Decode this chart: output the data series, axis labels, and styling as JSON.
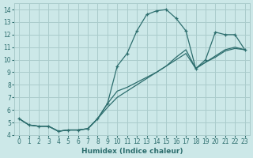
{
  "xlabel": "Humidex (Indice chaleur)",
  "bg_color": "#cce8e8",
  "grid_color": "#aacccc",
  "line_color": "#2d6e6e",
  "xlim": [
    -0.5,
    23.5
  ],
  "ylim": [
    4,
    14.5
  ],
  "line1_x": [
    0,
    1,
    2,
    3,
    4,
    5,
    6,
    7,
    8,
    9,
    10,
    11,
    12,
    13,
    14,
    15,
    16,
    17,
    18,
    19,
    20,
    21,
    22,
    23
  ],
  "line1_y": [
    5.3,
    4.8,
    4.7,
    4.7,
    4.3,
    4.4,
    4.4,
    4.5,
    5.3,
    6.5,
    9.5,
    10.5,
    12.3,
    13.6,
    13.9,
    14.0,
    13.3,
    12.3,
    9.3,
    10.0,
    12.2,
    12.0,
    12.0,
    10.8
  ],
  "line2_x": [
    0,
    1,
    2,
    3,
    4,
    5,
    6,
    7,
    8,
    9,
    10,
    11,
    12,
    13,
    14,
    15,
    16,
    17,
    18,
    19,
    20,
    21,
    22,
    23
  ],
  "line2_y": [
    5.3,
    4.8,
    4.7,
    4.7,
    4.3,
    4.4,
    4.4,
    4.5,
    5.3,
    6.5,
    7.5,
    7.8,
    8.2,
    8.6,
    9.0,
    9.5,
    10.0,
    10.5,
    9.3,
    9.8,
    10.2,
    10.7,
    10.9,
    10.8
  ],
  "line3_x": [
    0,
    1,
    2,
    3,
    4,
    5,
    6,
    7,
    8,
    9,
    10,
    11,
    12,
    13,
    14,
    15,
    16,
    17,
    18,
    19,
    20,
    21,
    22,
    23
  ],
  "line3_y": [
    5.3,
    4.8,
    4.7,
    4.7,
    4.3,
    4.4,
    4.4,
    4.5,
    5.3,
    6.2,
    7.0,
    7.5,
    8.0,
    8.5,
    9.0,
    9.5,
    10.2,
    10.8,
    9.3,
    9.8,
    10.3,
    10.8,
    11.0,
    10.8
  ],
  "xticks": [
    0,
    1,
    2,
    3,
    4,
    5,
    6,
    7,
    8,
    9,
    10,
    11,
    12,
    13,
    14,
    15,
    16,
    17,
    18,
    19,
    20,
    21,
    22,
    23
  ],
  "yticks": [
    4,
    5,
    6,
    7,
    8,
    9,
    10,
    11,
    12,
    13,
    14
  ],
  "xlabel_fontsize": 6.5,
  "tick_labelsize": 5.5
}
